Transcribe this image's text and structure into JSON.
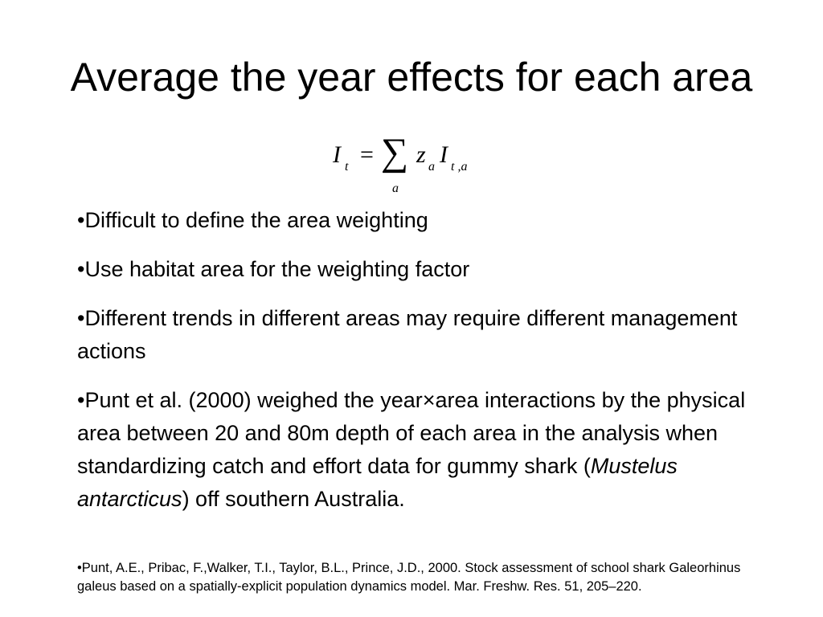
{
  "title": "Average the year effects for each area",
  "formula": {
    "lhs": "I",
    "lhs_sub": "t",
    "eq": "=",
    "sum": "∑",
    "sum_sub": "a",
    "z": "z",
    "z_sub": "a",
    "rhs": "I",
    "rhs_sub": "t ,a"
  },
  "bullets": [
    [
      "•Difficult to define the area weighting"
    ],
    [
      "•Use habitat area for the weighting factor"
    ],
    [
      "•Different trends in different areas may require different management actions"
    ],
    [
      "•Punt et al. (2000) weighed the year×area interactions by the physical area between 20 and 80m depth of each area in the analysis when standardizing catch and effort data for gummy shark (",
      "Mustelus antarcticus",
      ") off southern Australia."
    ]
  ],
  "reference": "•Punt, A.E., Pribac, F.,Walker, T.I., Taylor, B.L., Prince, J.D., 2000. Stock assessment of school shark Galeorhinus galeus based on a spatially-explicit population dynamics model. Mar. Freshw. Res. 51, 205–220."
}
